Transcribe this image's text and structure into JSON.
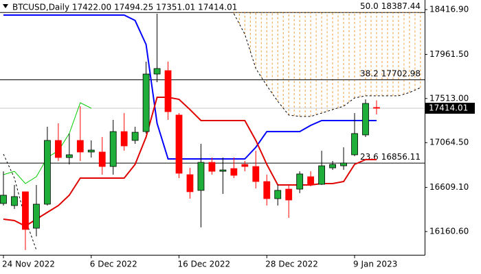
{
  "chart_data": {
    "type": "candlestick",
    "title": "BTCUSD,Daily  17422.00 17494.25 17351.01 17414.01",
    "categories": [
      "24 Nov 2022",
      null,
      null,
      null,
      null,
      null,
      null,
      null,
      "6 Dec 2022",
      null,
      null,
      null,
      null,
      null,
      null,
      null,
      "16 Dec 2022",
      null,
      null,
      null,
      null,
      null,
      null,
      null,
      "28 Dec 2022",
      null,
      null,
      null,
      null,
      null,
      null,
      null,
      "9 Jan 2023",
      null,
      null,
      null,
      null,
      null,
      null
    ],
    "open": [
      16446,
      16425,
      16565,
      16195,
      16439,
      17087,
      16913,
      17087,
      16969,
      16969,
      16822,
      17177,
      17087,
      17177,
      17762,
      17797,
      17345,
      16739,
      16579,
      16864,
      16773,
      16801,
      16843,
      16822,
      16669,
      16495,
      16592,
      16592,
      16718,
      16641,
      16808,
      16829,
      16941,
      17143,
      17422,
      null,
      null,
      null,
      null
    ],
    "high": [
      16773,
      16634,
      16565,
      16634,
      17226,
      17261,
      17157,
      17435,
      17087,
      17122,
      17296,
      17365,
      17226,
      17888,
      18375,
      17888,
      17365,
      16808,
      17052,
      16913,
      16913,
      16913,
      16878,
      16982,
      16739,
      16634,
      16634,
      16773,
      16773,
      16982,
      16878,
      17017,
      17365,
      17505,
      17494.25,
      null,
      null,
      null,
      null
    ],
    "low": [
      16425,
      16390,
      15973,
      16112,
      16425,
      16878,
      16843,
      16878,
      16913,
      16739,
      16739,
      16982,
      17052,
      17157,
      17679,
      17296,
      16704,
      16495,
      16203,
      16739,
      16544,
      16704,
      16773,
      16599,
      16425,
      16425,
      16300,
      16551,
      16620,
      16634,
      16787,
      16787,
      16927,
      17122,
      17351.01,
      null,
      null,
      null,
      null
    ],
    "close": [
      16530,
      16516,
      16182,
      16439,
      17087,
      16913,
      16941,
      16969,
      16989,
      16822,
      17177,
      17031,
      17170,
      17762,
      17818,
      17379,
      16753,
      16565,
      16864,
      16773,
      16787,
      16732,
      16822,
      16669,
      16495,
      16579,
      16481,
      16746,
      16634,
      16829,
      16843,
      16857,
      17157,
      17463,
      17414.01,
      null,
      null,
      null,
      null
    ],
    "up_color": "#1fae3a",
    "down_color": "#ff0000",
    "lines": [
      {
        "color": "#0000ff",
        "width": 2,
        "values": [
          18361,
          18361,
          18361,
          18361,
          18361,
          18361,
          18361,
          18361,
          18361,
          18361,
          18361,
          18361,
          18306,
          18062,
          17261,
          16899,
          16899,
          16899,
          16899,
          16899,
          16899,
          16899,
          16899,
          17017,
          17177,
          17177,
          17177,
          17177,
          17240,
          17289,
          17289,
          17289,
          17289,
          17289,
          17289,
          null,
          null,
          null,
          null
        ]
      },
      {
        "color": "#e00000",
        "width": 2,
        "values": [
          16286,
          16272,
          16216,
          16286,
          16356,
          16425,
          16530,
          16704,
          16704,
          16704,
          16704,
          16704,
          16843,
          17122,
          17526,
          17526,
          17505,
          17400,
          17289,
          17289,
          17289,
          17289,
          17289,
          17087,
          16843,
          16634,
          16634,
          16634,
          16634,
          16648,
          16648,
          16669,
          16843,
          16892,
          16892,
          null,
          null,
          null,
          null
        ]
      },
      {
        "color": "#00cc00",
        "width": 1,
        "values": [
          16739,
          16773,
          16648,
          16718,
          16913,
          16982,
          17157,
          17470,
          17414,
          null,
          null,
          null,
          null,
          null,
          null,
          null,
          null,
          null,
          null,
          null,
          null,
          null,
          null,
          null,
          null,
          null,
          null,
          null,
          null,
          null,
          null,
          null,
          null,
          null,
          null,
          null,
          null,
          null,
          null
        ]
      },
      {
        "color": "#000000",
        "width": 1,
        "dash": true,
        "values": [
          16948,
          16704,
          16286,
          15973,
          null,
          null,
          null,
          null,
          null,
          null,
          null,
          null,
          null,
          null,
          null,
          null,
          null,
          null,
          null,
          null,
          null,
          18375,
          18166,
          17818,
          17644,
          17484,
          17345,
          17331,
          17331,
          17365,
          17400,
          17435,
          17519,
          17540,
          17540,
          17540,
          17540,
          17574,
          17623
        ]
      },
      {
        "color": "#f0a040",
        "width": 1,
        "cloud_top": true,
        "values": [
          null,
          null,
          null,
          null,
          null,
          null,
          null,
          null,
          null,
          null,
          null,
          null,
          null,
          null,
          null,
          null,
          null,
          null,
          null,
          null,
          null,
          18390,
          18390,
          18390,
          18390,
          18390,
          18390,
          18390,
          18390,
          18390,
          18390,
          18390,
          18390,
          18390,
          18390,
          18390,
          18390,
          18390,
          18390
        ]
      }
    ],
    "cloud_color": "#f0a040",
    "fib_levels": [
      {
        "label": "50.0",
        "price": 18387.44
      },
      {
        "label": "38.2",
        "price": 17702.98
      },
      {
        "label": "23.6",
        "price": 16856.11
      }
    ],
    "last_price": 17414.01,
    "ylim": [
      15924,
      18514.5
    ],
    "yticks": [
      {
        "value": 16160.6,
        "label": "16160.60"
      },
      {
        "value": 16609.1,
        "label": "16609.10"
      },
      {
        "value": 17064.5,
        "label": "17064.50"
      },
      {
        "value": 17513,
        "label": "17513.00"
      },
      {
        "value": 17961.5,
        "label": "17961.50"
      },
      {
        "value": 18416.9,
        "label": "18416.90"
      }
    ]
  }
}
